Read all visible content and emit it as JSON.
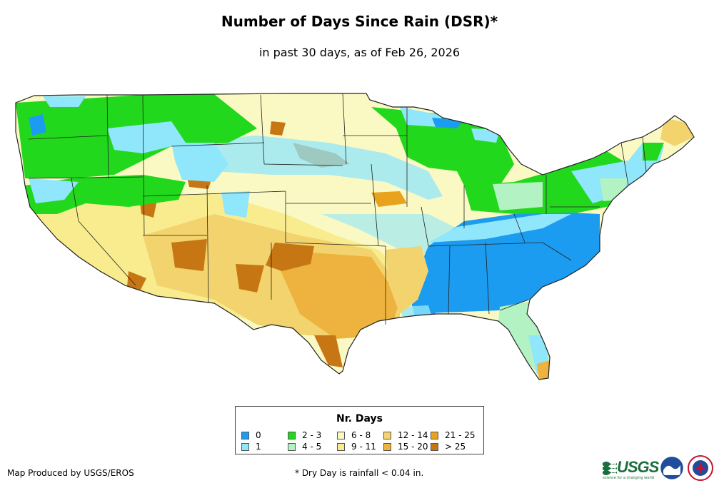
{
  "title": "Number of Days Since Rain (DSR)*",
  "subtitle": "in past 30 days, as of Feb 26, 2026",
  "legend": {
    "title": "Nr. Days",
    "items": [
      {
        "label": "0",
        "color": "#1b9cf0"
      },
      {
        "label": "1",
        "color": "#90e6fb"
      },
      {
        "label": "2 - 3",
        "color": "#22d81c"
      },
      {
        "label": "4 - 5",
        "color": "#b3f2c3"
      },
      {
        "label": "6 - 8",
        "color": "#fbf9c3"
      },
      {
        "label": "9 - 11",
        "color": "#f8ec8e"
      },
      {
        "label": "12 - 14",
        "color": "#f3d36d"
      },
      {
        "label": "15 - 20",
        "color": "#edb33e"
      },
      {
        "label": "21 - 25",
        "color": "#e8a21b"
      },
      {
        "label": "> 25",
        "color": "#c77614"
      }
    ]
  },
  "credit": "Map Produced by USGS/EROS",
  "footnote": "* Dry Day is rainfall < 0.04 in.",
  "logos": {
    "usgs": "USGS",
    "usgs_tagline": "science for a changing world",
    "noaa": "NOAA",
    "nws": "NATIONAL WEATHER SERVICE"
  }
}
